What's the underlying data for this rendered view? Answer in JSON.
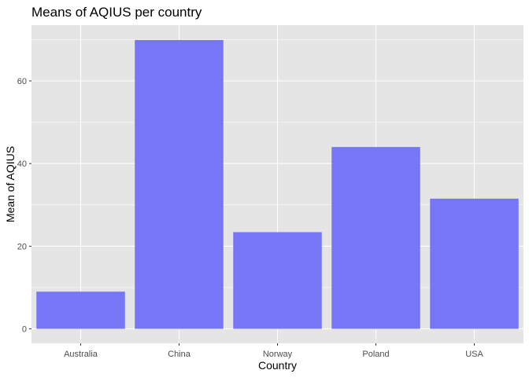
{
  "chart_data": {
    "type": "bar",
    "title": "Means of AQIUS per country",
    "xlabel": "Country",
    "ylabel": "Mean of AQIUS",
    "categories": [
      "Australia",
      "China",
      "Norway",
      "Poland",
      "USA"
    ],
    "values": [
      9.0,
      69.9,
      23.4,
      44.0,
      31.5
    ],
    "ylim": [
      -3.5,
      73.5
    ],
    "yticks": [
      0,
      20,
      40,
      60
    ],
    "grid": true,
    "colors": {
      "bar": "#7070F8",
      "panel": "#E5E5E5",
      "grid_major": "#FFFFFF",
      "axis_text": "#4D4D4D",
      "tick": "#333333",
      "title": "#000000"
    }
  }
}
